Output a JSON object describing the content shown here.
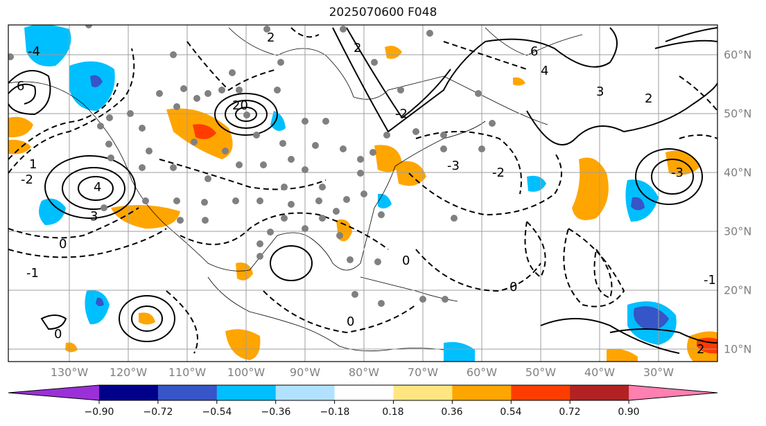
{
  "title": "2025070600 F048",
  "longitude_labels": [
    "130°W",
    "120°W",
    "110°W",
    "100°W",
    "90°W",
    "80°W",
    "70°W",
    "60°W",
    "50°W",
    "40°W",
    "30°W"
  ],
  "latitude_labels": [
    "60°N",
    "50°N",
    "40°N",
    "30°N",
    "20°N",
    "10°N"
  ],
  "contour_labels": [
    "-4",
    "-3",
    "-2",
    "-2",
    "-2",
    "-1",
    "0",
    "0",
    "0",
    "0",
    "0",
    "1",
    "2",
    "2",
    "2",
    "3",
    "3",
    "4",
    "4",
    "6",
    "6",
    "20",
    "-3",
    "-1",
    "2"
  ],
  "colorbar": {
    "tick_labels": [
      "−0.90",
      "−0.72",
      "−0.54",
      "−0.36",
      "−0.18",
      "0.18",
      "0.36",
      "0.54",
      "0.72",
      "0.90"
    ],
    "colors": [
      "#9b30d8",
      "#00008b",
      "#3655c8",
      "#00bfff",
      "#b0e2ff",
      "#ffffff",
      "#ffe680",
      "#ffa500",
      "#ff3c00",
      "#b22222",
      "#ff80b0"
    ]
  }
}
